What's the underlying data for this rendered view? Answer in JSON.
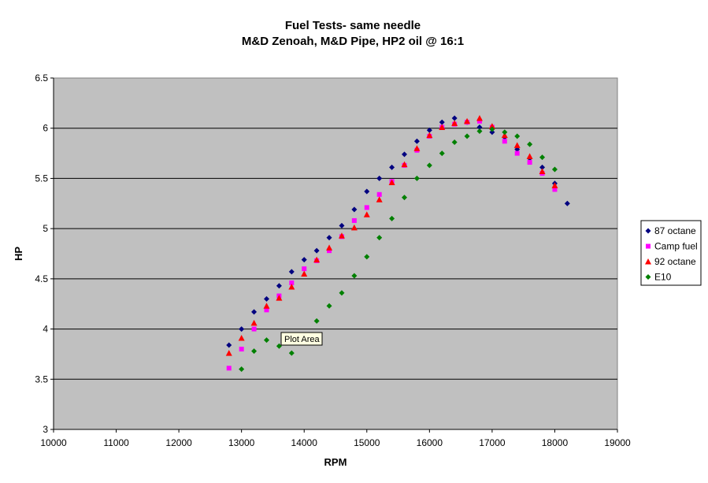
{
  "chart_data": {
    "type": "scatter",
    "title": "Fuel Tests- same needle",
    "subtitle": "M&D Zenoah, M&D Pipe, HP2 oil @ 16:1",
    "xlabel": "RPM",
    "ylabel": "HP",
    "xlim": [
      10000,
      19000
    ],
    "ylim": [
      3,
      6.5
    ],
    "xticks": [
      10000,
      11000,
      12000,
      13000,
      14000,
      15000,
      16000,
      17000,
      18000,
      19000
    ],
    "yticks": [
      3,
      3.5,
      4,
      4.5,
      5,
      5.5,
      6,
      6.5
    ],
    "grid": "horizontal",
    "legend_position": "right",
    "plot_background": "#c0c0c0",
    "series": [
      {
        "name": "87 octane",
        "marker": "diamond",
        "color": "#000080",
        "points": [
          [
            12800,
            3.84
          ],
          [
            13000,
            4.0
          ],
          [
            13200,
            4.17
          ],
          [
            13400,
            4.3
          ],
          [
            13600,
            4.43
          ],
          [
            13800,
            4.57
          ],
          [
            14000,
            4.69
          ],
          [
            14200,
            4.78
          ],
          [
            14400,
            4.91
          ],
          [
            14600,
            5.03
          ],
          [
            14800,
            5.19
          ],
          [
            15000,
            5.37
          ],
          [
            15200,
            5.5
          ],
          [
            15400,
            5.61
          ],
          [
            15600,
            5.74
          ],
          [
            15800,
            5.87
          ],
          [
            16000,
            5.98
          ],
          [
            16200,
            6.06
          ],
          [
            16400,
            6.1
          ],
          [
            16600,
            6.06
          ],
          [
            16800,
            6.01
          ],
          [
            17000,
            5.96
          ],
          [
            17200,
            5.91
          ],
          [
            17400,
            5.79
          ],
          [
            17600,
            5.7
          ],
          [
            17800,
            5.61
          ],
          [
            18000,
            5.45
          ],
          [
            18200,
            5.25
          ]
        ]
      },
      {
        "name": "Camp fuel",
        "marker": "square",
        "color": "#ff00ff",
        "points": [
          [
            12800,
            3.61
          ],
          [
            13000,
            3.8
          ],
          [
            13200,
            4.0
          ],
          [
            13400,
            4.19
          ],
          [
            13600,
            4.33
          ],
          [
            13800,
            4.46
          ],
          [
            14000,
            4.6
          ],
          [
            14200,
            4.68
          ],
          [
            14400,
            4.78
          ],
          [
            14600,
            4.92
          ],
          [
            14800,
            5.08
          ],
          [
            15000,
            5.21
          ],
          [
            15200,
            5.34
          ],
          [
            15400,
            5.47
          ],
          [
            15600,
            5.63
          ],
          [
            15800,
            5.78
          ],
          [
            16000,
            5.92
          ],
          [
            16200,
            6.01
          ],
          [
            16400,
            6.04
          ],
          [
            16600,
            6.06
          ],
          [
            16800,
            6.07
          ],
          [
            17000,
            6.01
          ],
          [
            17200,
            5.87
          ],
          [
            17400,
            5.75
          ],
          [
            17600,
            5.66
          ],
          [
            17800,
            5.55
          ],
          [
            18000,
            5.39
          ]
        ]
      },
      {
        "name": "92 octane",
        "marker": "triangle",
        "color": "#ff0000",
        "points": [
          [
            12800,
            3.76
          ],
          [
            13000,
            3.91
          ],
          [
            13200,
            4.06
          ],
          [
            13400,
            4.23
          ],
          [
            13600,
            4.31
          ],
          [
            13800,
            4.42
          ],
          [
            14000,
            4.55
          ],
          [
            14200,
            4.69
          ],
          [
            14400,
            4.81
          ],
          [
            14600,
            4.93
          ],
          [
            14800,
            5.01
          ],
          [
            15000,
            5.14
          ],
          [
            15200,
            5.29
          ],
          [
            15400,
            5.46
          ],
          [
            15600,
            5.64
          ],
          [
            15800,
            5.8
          ],
          [
            16000,
            5.93
          ],
          [
            16200,
            6.01
          ],
          [
            16400,
            6.05
          ],
          [
            16600,
            6.07
          ],
          [
            16800,
            6.1
          ],
          [
            17000,
            6.02
          ],
          [
            17200,
            5.93
          ],
          [
            17400,
            5.83
          ],
          [
            17600,
            5.72
          ],
          [
            17800,
            5.57
          ],
          [
            18000,
            5.43
          ]
        ]
      },
      {
        "name": "E10",
        "marker": "diamond",
        "color": "#008000",
        "points": [
          [
            13000,
            3.6
          ],
          [
            13200,
            3.78
          ],
          [
            13400,
            3.89
          ],
          [
            13600,
            3.83
          ],
          [
            13800,
            3.76
          ],
          [
            14200,
            4.08
          ],
          [
            14400,
            4.23
          ],
          [
            14600,
            4.36
          ],
          [
            14800,
            4.53
          ],
          [
            15000,
            4.72
          ],
          [
            15200,
            4.91
          ],
          [
            15400,
            5.1
          ],
          [
            15600,
            5.31
          ],
          [
            15800,
            5.5
          ],
          [
            16000,
            5.63
          ],
          [
            16200,
            5.75
          ],
          [
            16400,
            5.86
          ],
          [
            16600,
            5.92
          ],
          [
            16800,
            5.97
          ],
          [
            17000,
            5.99
          ],
          [
            17200,
            5.96
          ],
          [
            17400,
            5.92
          ],
          [
            17600,
            5.84
          ],
          [
            17800,
            5.71
          ],
          [
            18000,
            5.59
          ]
        ]
      }
    ],
    "tooltip": "Plot Area"
  }
}
